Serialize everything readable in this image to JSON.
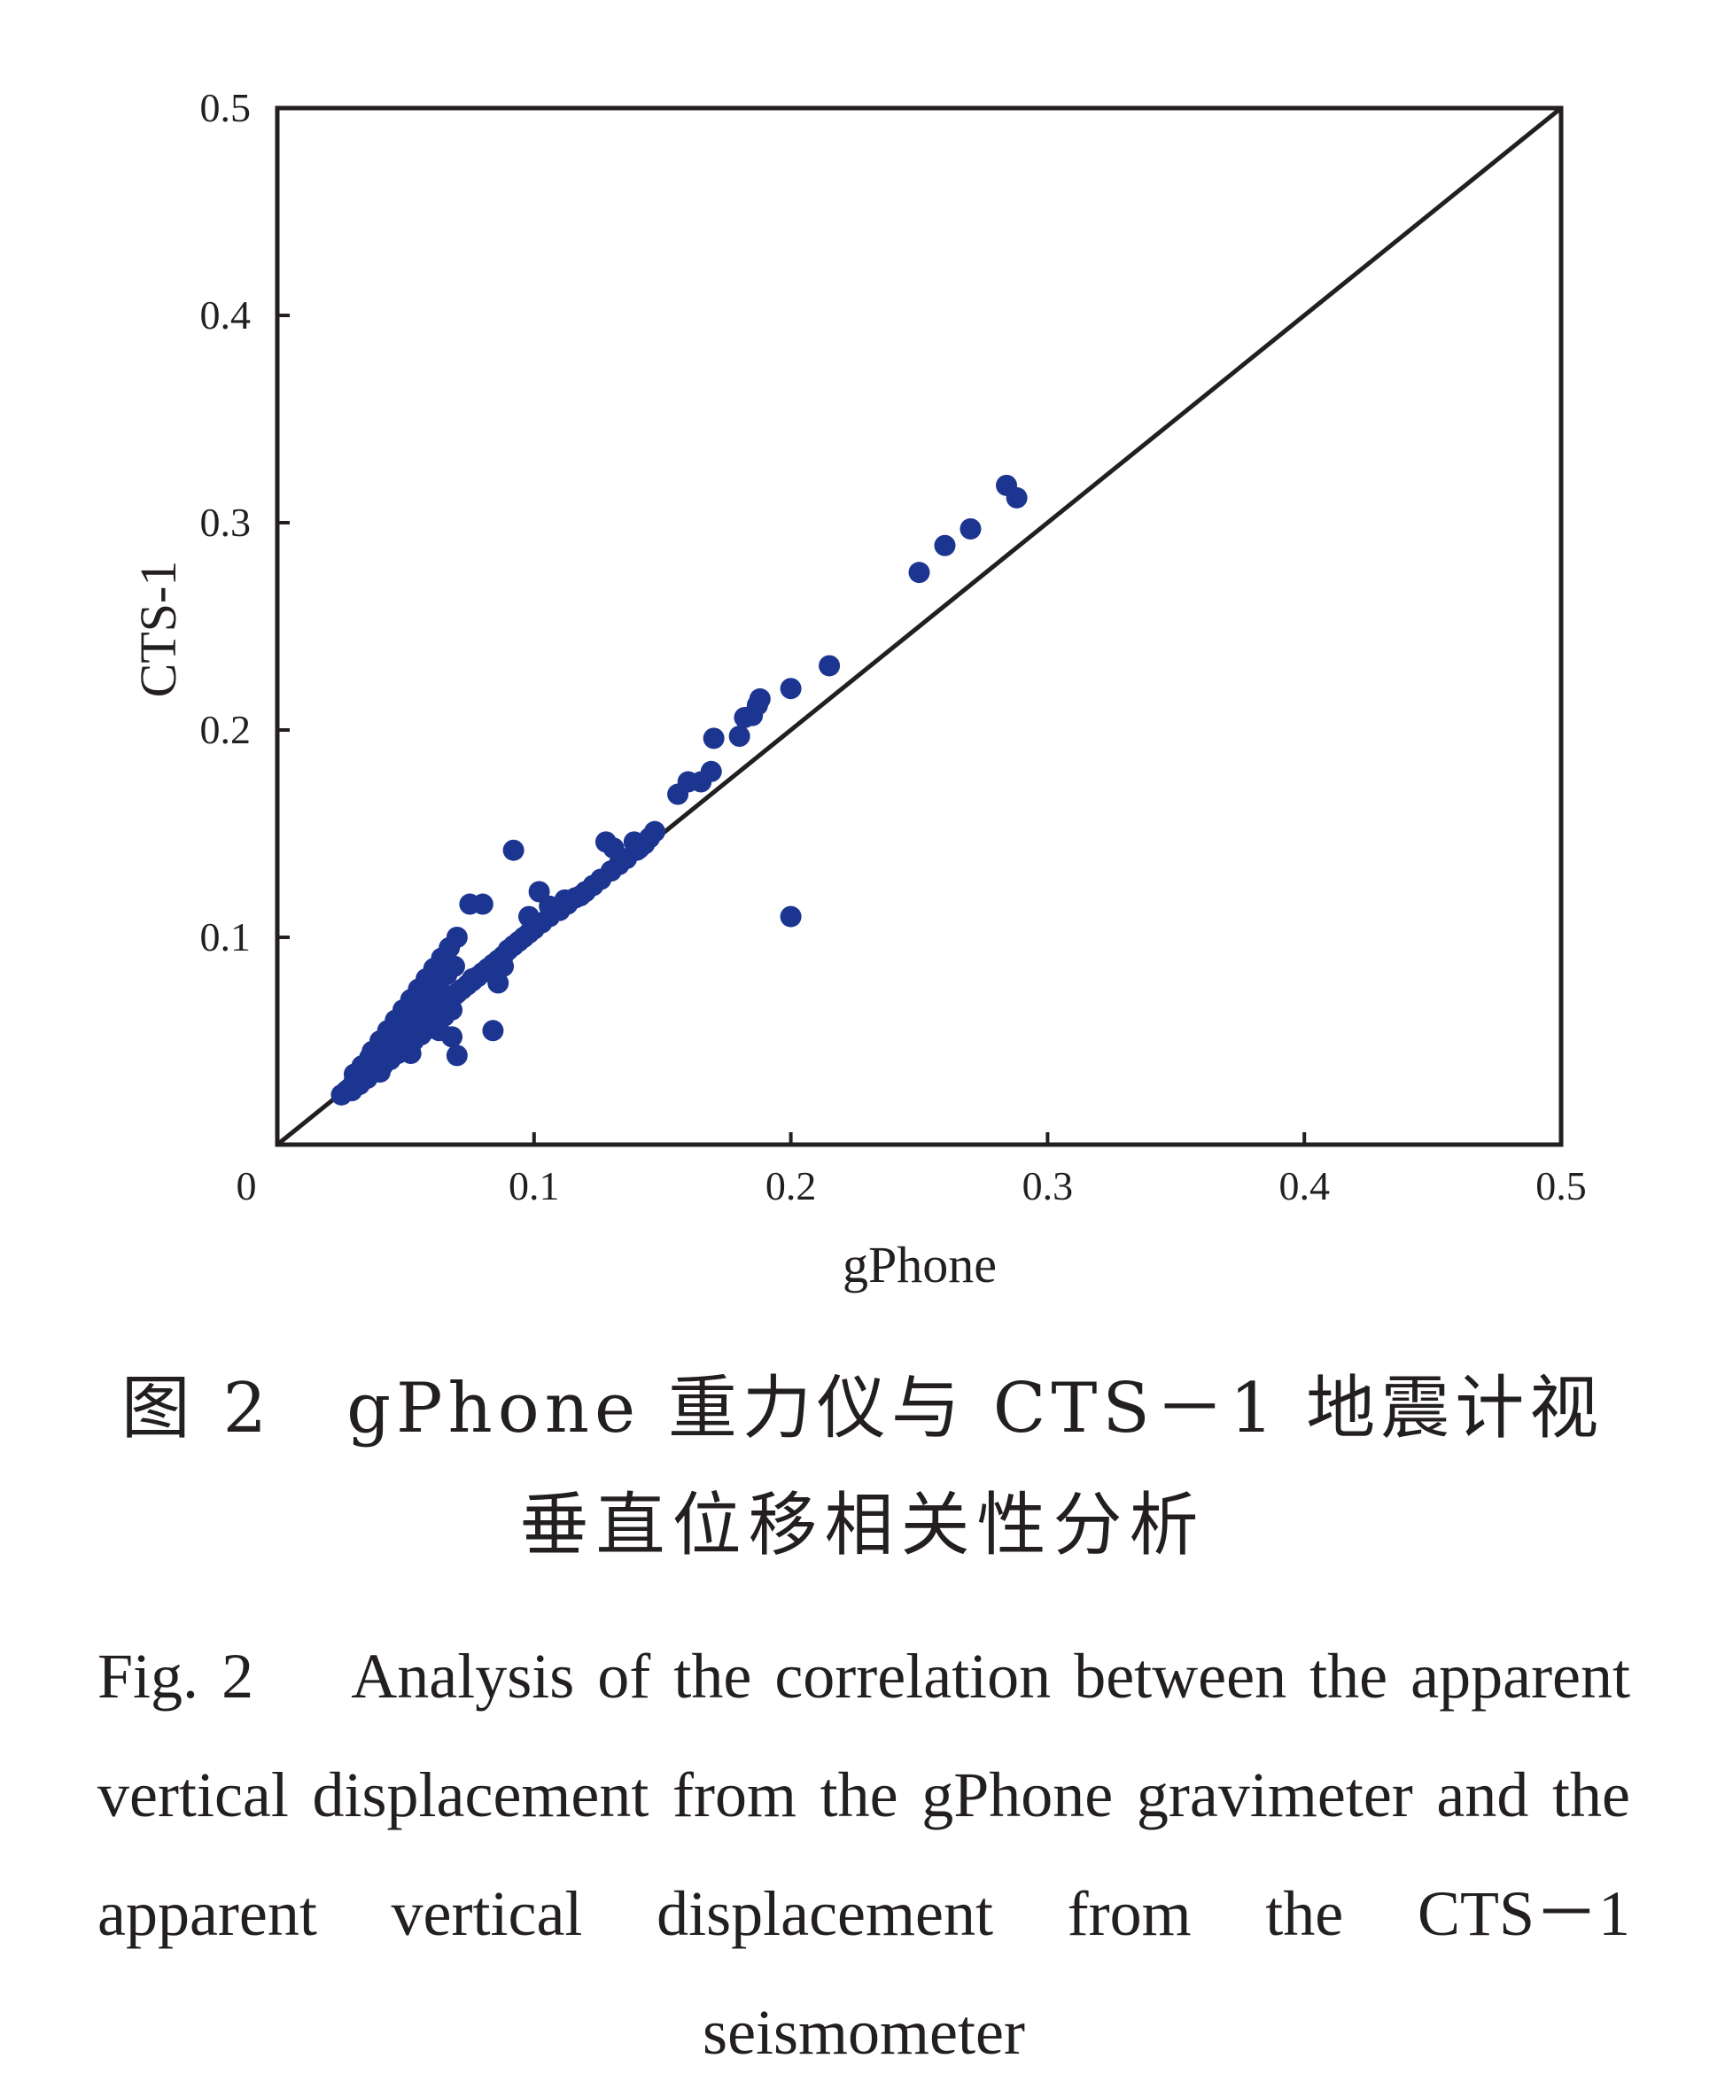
{
  "caption": {
    "cn_line1": "图 2　gPhone 重力仪与 CTS－1 地震计视",
    "cn_line2": "垂直位移相关性分析",
    "en": "Fig. 2　 Analysis of the correlation between the apparent vertical displacement from the gPhone gravimeter and the apparent vertical displacement from the CTS－1 seismometer"
  },
  "chart_data": {
    "type": "scatter",
    "title": "",
    "xlabel": "gPhone",
    "ylabel": "CTS-1",
    "xlim": [
      0,
      0.5
    ],
    "ylim": [
      0,
      0.5
    ],
    "x_ticks": [
      "0",
      "0.1",
      "0.2",
      "0.3",
      "0.4",
      "0.5"
    ],
    "y_ticks": [
      "0.1",
      "0.2",
      "0.3",
      "0.4",
      "0.5"
    ],
    "x_tick_values": [
      0,
      0.1,
      0.2,
      0.3,
      0.4,
      0.5
    ],
    "y_tick_values": [
      0.1,
      0.2,
      0.3,
      0.4,
      0.5
    ],
    "grid": false,
    "legend": "none",
    "reference_line": {
      "x": [
        0,
        0.5
      ],
      "y": [
        0,
        0.5
      ],
      "color": "#231f20"
    },
    "marker_color": "#1c3591",
    "series": [
      {
        "x": [
          0.025,
          0.027,
          0.028,
          0.029,
          0.03,
          0.031,
          0.032,
          0.033,
          0.034,
          0.035,
          0.036,
          0.037,
          0.038,
          0.039,
          0.04,
          0.041,
          0.042,
          0.043,
          0.044,
          0.045,
          0.046,
          0.047,
          0.048,
          0.049,
          0.05,
          0.051,
          0.052,
          0.053,
          0.054,
          0.055,
          0.056,
          0.057,
          0.058,
          0.059,
          0.06,
          0.061,
          0.062,
          0.063,
          0.064,
          0.065,
          0.066,
          0.067,
          0.068,
          0.069,
          0.07,
          0.072,
          0.074,
          0.076,
          0.078,
          0.08,
          0.082,
          0.084,
          0.086,
          0.088,
          0.09,
          0.092,
          0.094,
          0.096,
          0.098,
          0.1,
          0.103,
          0.106,
          0.11,
          0.113,
          0.116,
          0.12,
          0.123,
          0.126,
          0.13,
          0.133,
          0.136,
          0.14,
          0.143,
          0.145,
          0.147,
          0.03,
          0.033,
          0.036,
          0.039,
          0.042,
          0.045,
          0.048,
          0.051,
          0.054,
          0.057,
          0.06,
          0.063,
          0.066,
          0.069,
          0.029,
          0.032,
          0.035,
          0.038,
          0.041,
          0.044,
          0.047,
          0.05,
          0.053,
          0.056,
          0.059,
          0.062,
          0.065,
          0.068,
          0.037,
          0.04,
          0.043,
          0.046,
          0.049,
          0.052,
          0.055,
          0.058,
          0.061,
          0.064,
          0.067,
          0.07,
          0.03,
          0.04,
          0.05,
          0.052,
          0.06,
          0.063,
          0.068,
          0.07,
          0.075,
          0.076,
          0.08,
          0.084,
          0.085,
          0.086,
          0.088,
          0.092,
          0.098,
          0.102,
          0.106,
          0.112,
          0.118,
          0.128,
          0.131,
          0.139,
          0.141,
          0.156,
          0.16,
          0.165,
          0.169,
          0.17,
          0.18,
          0.182,
          0.185,
          0.187,
          0.188,
          0.2,
          0.2,
          0.215,
          0.25,
          0.26,
          0.27,
          0.284,
          0.288
        ],
        "y": [
          0.024,
          0.026,
          0.027,
          0.028,
          0.03,
          0.031,
          0.032,
          0.034,
          0.035,
          0.036,
          0.037,
          0.038,
          0.04,
          0.041,
          0.042,
          0.043,
          0.044,
          0.045,
          0.047,
          0.048,
          0.049,
          0.05,
          0.051,
          0.052,
          0.053,
          0.054,
          0.055,
          0.056,
          0.057,
          0.058,
          0.059,
          0.06,
          0.061,
          0.062,
          0.063,
          0.064,
          0.065,
          0.066,
          0.067,
          0.068,
          0.069,
          0.07,
          0.071,
          0.072,
          0.073,
          0.075,
          0.077,
          0.079,
          0.081,
          0.083,
          0.085,
          0.087,
          0.089,
          0.091,
          0.094,
          0.096,
          0.098,
          0.1,
          0.102,
          0.104,
          0.107,
          0.11,
          0.113,
          0.116,
          0.119,
          0.122,
          0.125,
          0.128,
          0.132,
          0.135,
          0.138,
          0.142,
          0.145,
          0.148,
          0.151,
          0.034,
          0.038,
          0.042,
          0.046,
          0.05,
          0.054,
          0.058,
          0.062,
          0.066,
          0.07,
          0.074,
          0.078,
          0.082,
          0.086,
          0.026,
          0.029,
          0.032,
          0.035,
          0.038,
          0.041,
          0.044,
          0.047,
          0.05,
          0.053,
          0.056,
          0.059,
          0.062,
          0.065,
          0.045,
          0.05,
          0.055,
          0.06,
          0.065,
          0.07,
          0.075,
          0.08,
          0.085,
          0.09,
          0.095,
          0.1,
          0.031,
          0.035,
          0.05,
          0.044,
          0.06,
          0.055,
          0.052,
          0.043,
          0.116,
          0.08,
          0.116,
          0.055,
          0.082,
          0.078,
          0.086,
          0.142,
          0.11,
          0.122,
          0.115,
          0.118,
          0.12,
          0.146,
          0.143,
          0.146,
          0.143,
          0.169,
          0.175,
          0.175,
          0.18,
          0.196,
          0.197,
          0.206,
          0.207,
          0.212,
          0.215,
          0.22,
          0.11,
          0.231,
          0.276,
          0.289,
          0.297,
          0.318,
          0.312
        ]
      }
    ]
  }
}
